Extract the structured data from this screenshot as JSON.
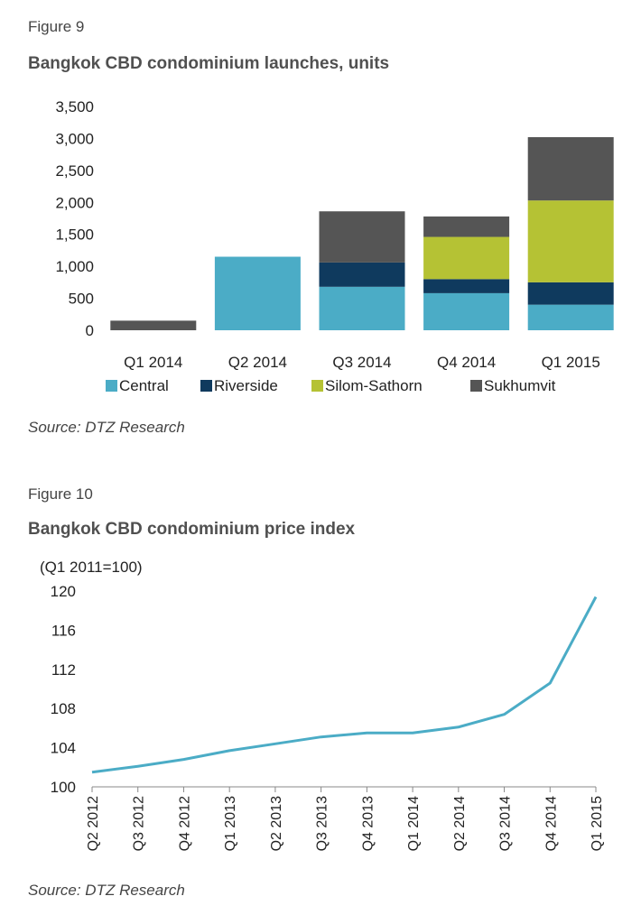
{
  "colors": {
    "central": "#4bacc6",
    "riverside": "#0f3a5e",
    "silom": "#b5c234",
    "sukhumvit": "#555555",
    "line": "#4bacc6"
  },
  "fig9": {
    "label": "Figure 9",
    "title": "Bangkok CBD condominium launches, units",
    "source": "Source: DTZ Research"
  },
  "fig10": {
    "label": "Figure 10",
    "title": "Bangkok CBD condominium price index",
    "source": "Source: DTZ Research"
  },
  "chart_data": [
    {
      "type": "bar",
      "stacked": true,
      "title": "Bangkok CBD condominium launches, units",
      "categories": [
        "Q1 2014",
        "Q2 2014",
        "Q3 2014",
        "Q4 2014",
        "Q1 2015"
      ],
      "series": [
        {
          "name": "Central",
          "color_key": "central",
          "values": [
            0,
            1150,
            680,
            580,
            400
          ]
        },
        {
          "name": "Riverside",
          "color_key": "riverside",
          "values": [
            0,
            0,
            380,
            220,
            350
          ]
        },
        {
          "name": "Silom-Sathorn",
          "color_key": "silom",
          "values": [
            0,
            0,
            0,
            660,
            1280
          ]
        },
        {
          "name": "Sukhumvit",
          "color_key": "sukhumvit",
          "values": [
            150,
            0,
            800,
            320,
            990
          ]
        }
      ],
      "ylim": [
        0,
        3500
      ],
      "yticks": [
        "0",
        "500",
        "1,000",
        "1,500",
        "2,000",
        "2,500",
        "3,000",
        "3,500"
      ],
      "ytick_values": [
        0,
        500,
        1000,
        1500,
        2000,
        2500,
        3000,
        3500
      ],
      "legend": "bottom"
    },
    {
      "type": "line",
      "title": "Bangkok CBD condominium price index",
      "unit_label": "(Q1 2011=100)",
      "x": [
        "Q2 2012",
        "Q3 2012",
        "Q4 2012",
        "Q1 2013",
        "Q2 2013",
        "Q3 2013",
        "Q4 2013",
        "Q1 2014",
        "Q2 2014",
        "Q3 2014",
        "Q4 2014",
        "Q1 2015"
      ],
      "series": [
        {
          "name": "Price index",
          "values": [
            101.5,
            102.1,
            102.8,
            103.7,
            104.4,
            105.1,
            105.5,
            105.5,
            106.1,
            107.4,
            110.6,
            119.4
          ]
        }
      ],
      "ylim": [
        100,
        120
      ],
      "yticks": [
        "100",
        "104",
        "108",
        "112",
        "116",
        "120"
      ],
      "ytick_values": [
        100,
        104,
        108,
        112,
        116,
        120
      ]
    }
  ]
}
